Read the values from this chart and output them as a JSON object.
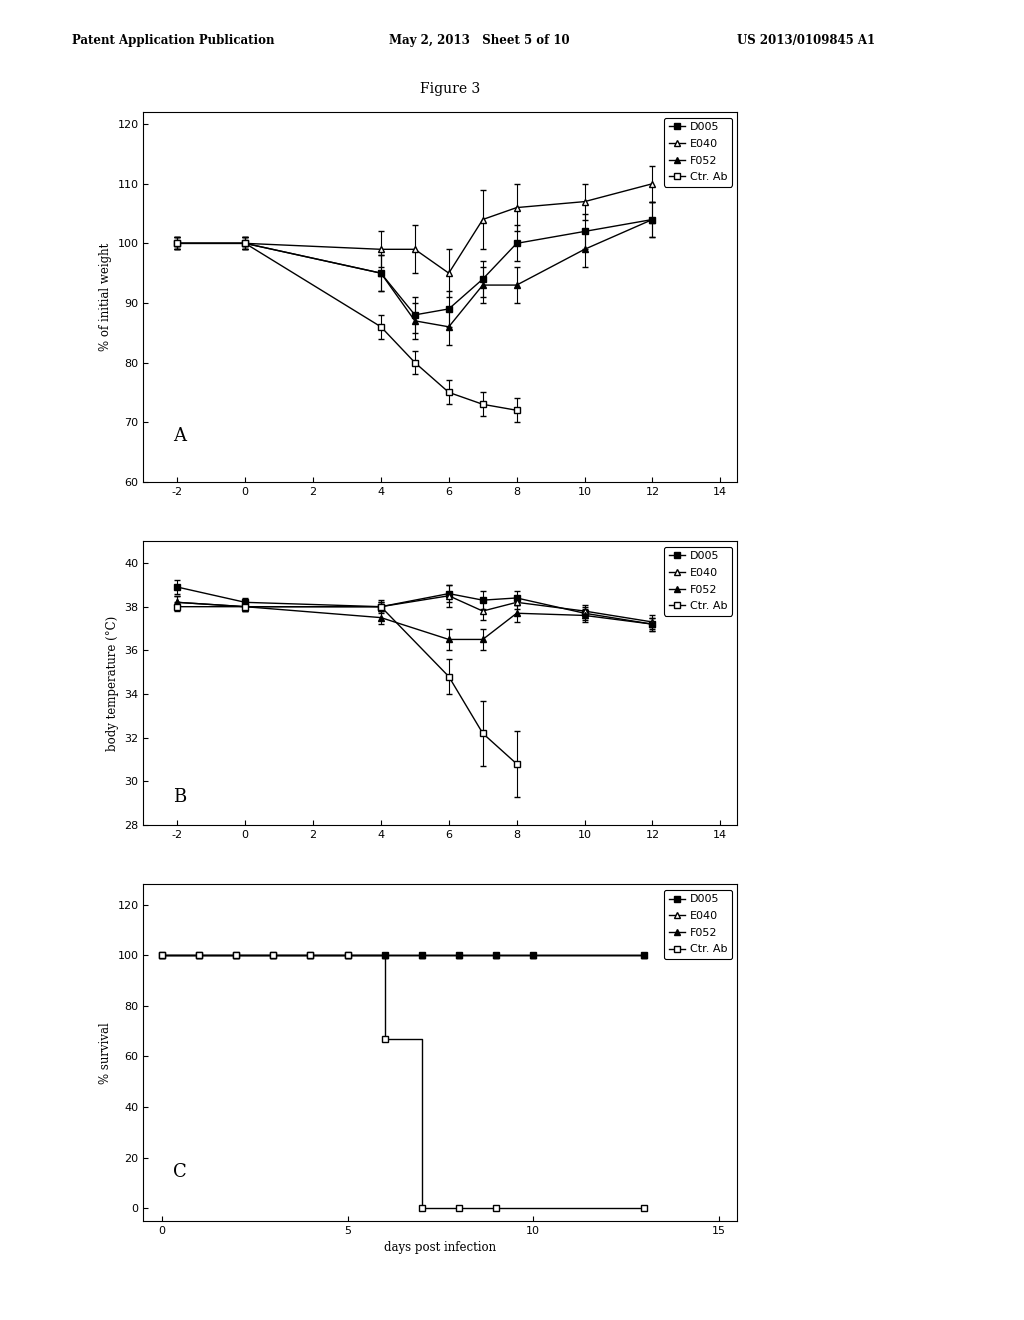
{
  "header_left": "Patent Application Publication",
  "header_mid": "May 2, 2013   Sheet 5 of 10",
  "header_right": "US 2013/0109845 A1",
  "figure_title": "Figure 3",
  "bg_color": "#e8e8e8",
  "plot_A": {
    "label": "A",
    "ylabel": "% of initial weight",
    "xlim": [
      -3,
      14.5
    ],
    "ylim": [
      60,
      122
    ],
    "xticks": [
      -2,
      0,
      2,
      4,
      6,
      8,
      10,
      12,
      14
    ],
    "yticks": [
      60,
      70,
      80,
      90,
      100,
      110,
      120
    ],
    "series": {
      "D005": {
        "x": [
          -2,
          0,
          4,
          5,
          6,
          7,
          8,
          10,
          12
        ],
        "y": [
          100,
          100,
          95,
          88,
          89,
          94,
          100,
          102,
          104
        ],
        "yerr": [
          1,
          1,
          3,
          3,
          3,
          3,
          3,
          3,
          3
        ],
        "marker": "s",
        "filled": true
      },
      "E040": {
        "x": [
          -2,
          0,
          4,
          5,
          6,
          7,
          8,
          10,
          12
        ],
        "y": [
          100,
          100,
          99,
          99,
          95,
          104,
          106,
          107,
          110
        ],
        "yerr": [
          1,
          1,
          3,
          4,
          4,
          5,
          4,
          3,
          3
        ],
        "marker": "^",
        "filled": false
      },
      "F052": {
        "x": [
          -2,
          0,
          4,
          5,
          6,
          7,
          8,
          10,
          12
        ],
        "y": [
          100,
          100,
          95,
          87,
          86,
          93,
          93,
          99,
          104
        ],
        "yerr": [
          1,
          1,
          3,
          3,
          3,
          3,
          3,
          3,
          3
        ],
        "marker": "^",
        "filled": true
      },
      "Ctr. Ab": {
        "x": [
          -2,
          0,
          4,
          5,
          6,
          7,
          8
        ],
        "y": [
          100,
          100,
          86,
          80,
          75,
          73,
          72
        ],
        "yerr": [
          1,
          1,
          2,
          2,
          2,
          2,
          2
        ],
        "marker": "s",
        "filled": false
      }
    }
  },
  "plot_B": {
    "label": "B",
    "ylabel": "body temperature (°C)",
    "xlim": [
      -3,
      14.5
    ],
    "ylim": [
      28,
      41
    ],
    "xticks": [
      -2,
      0,
      2,
      4,
      6,
      8,
      10,
      12,
      14
    ],
    "yticks": [
      28,
      30,
      32,
      34,
      36,
      38,
      40
    ],
    "series": {
      "D005": {
        "x": [
          -2,
          0,
          4,
          6,
          7,
          8,
          10,
          12
        ],
        "y": [
          38.9,
          38.2,
          38.0,
          38.6,
          38.3,
          38.4,
          37.7,
          37.2
        ],
        "yerr": [
          0.3,
          0.2,
          0.2,
          0.4,
          0.4,
          0.3,
          0.3,
          0.3
        ],
        "marker": "s",
        "filled": true
      },
      "E040": {
        "x": [
          -2,
          0,
          4,
          6,
          7,
          8,
          10,
          12
        ],
        "y": [
          38.2,
          38.0,
          38.0,
          38.5,
          37.8,
          38.2,
          37.8,
          37.3
        ],
        "yerr": [
          0.3,
          0.2,
          0.2,
          0.5,
          0.4,
          0.3,
          0.3,
          0.3
        ],
        "marker": "^",
        "filled": false
      },
      "F052": {
        "x": [
          -2,
          0,
          4,
          6,
          7,
          8,
          10,
          12
        ],
        "y": [
          38.2,
          38.0,
          37.5,
          36.5,
          36.5,
          37.7,
          37.6,
          37.2
        ],
        "yerr": [
          0.3,
          0.2,
          0.3,
          0.5,
          0.5,
          0.4,
          0.3,
          0.3
        ],
        "marker": "^",
        "filled": true
      },
      "Ctr. Ab": {
        "x": [
          -2,
          0,
          4,
          6,
          7,
          8
        ],
        "y": [
          38.0,
          38.0,
          38.0,
          34.8,
          32.2,
          30.8
        ],
        "yerr": [
          0.2,
          0.2,
          0.3,
          0.8,
          1.5,
          1.5
        ],
        "marker": "s",
        "filled": false
      }
    }
  },
  "plot_C": {
    "label": "C",
    "ylabel": "% survival",
    "xlabel": "days post infection",
    "xlim": [
      -0.5,
      15.5
    ],
    "ylim": [
      -5,
      128
    ],
    "xticks": [
      0,
      5,
      10,
      15
    ],
    "yticks": [
      0,
      20,
      40,
      60,
      80,
      100,
      120
    ],
    "series": {
      "D005": {
        "x": [
          0,
          1,
          2,
          3,
          4,
          5,
          6,
          7,
          8,
          9,
          10,
          13
        ],
        "y": [
          100,
          100,
          100,
          100,
          100,
          100,
          100,
          100,
          100,
          100,
          100,
          100
        ],
        "marker": "s",
        "filled": true
      },
      "E040": {
        "x": [
          0,
          1,
          2,
          3,
          4,
          5,
          6,
          7,
          8,
          9,
          10,
          13
        ],
        "y": [
          100,
          100,
          100,
          100,
          100,
          100,
          100,
          100,
          100,
          100,
          100,
          100
        ],
        "marker": "^",
        "filled": false
      },
      "F052": {
        "x": [
          0,
          1,
          2,
          3,
          4,
          5,
          6,
          7,
          8,
          9,
          10,
          13
        ],
        "y": [
          100,
          100,
          100,
          100,
          100,
          100,
          100,
          100,
          100,
          100,
          100,
          100
        ],
        "marker": "^",
        "filled": true
      },
      "Ctr. Ab": {
        "x": [
          0,
          1,
          2,
          3,
          4,
          5,
          6,
          7,
          8,
          9,
          13
        ],
        "y": [
          100,
          100,
          100,
          100,
          100,
          100,
          67,
          0,
          0,
          0,
          0
        ],
        "marker": "s",
        "filled": false
      }
    }
  }
}
